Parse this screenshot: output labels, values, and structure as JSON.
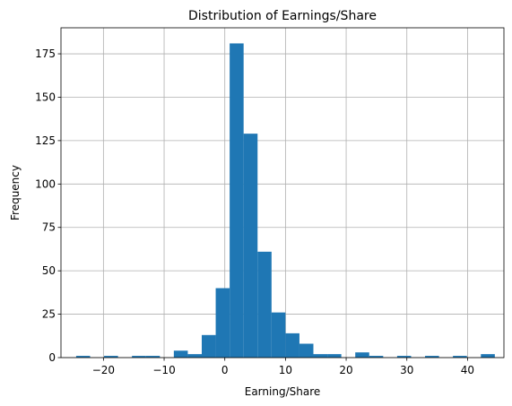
{
  "chart_data": {
    "type": "bar",
    "title": "Distribution of Earnings/Share",
    "xlabel": "Earning/Share",
    "ylabel": "Frequency",
    "xlim": [
      -27,
      46
    ],
    "ylim": [
      0,
      190
    ],
    "xticks": [
      -20,
      -10,
      0,
      10,
      20,
      30,
      40
    ],
    "xtick_labels": [
      "−20",
      "−10",
      "0",
      "10",
      "20",
      "30",
      "40"
    ],
    "yticks": [
      0,
      25,
      50,
      75,
      100,
      125,
      150,
      175
    ],
    "ytick_labels": [
      "0",
      "25",
      "50",
      "75",
      "100",
      "125",
      "150",
      "175"
    ],
    "grid": true,
    "bin_edges": [
      -24.5,
      -22.2,
      -19.9,
      -17.6,
      -15.3,
      -13.0,
      -10.7,
      -8.4,
      -6.1,
      -3.8,
      -1.5,
      0.8,
      3.1,
      5.4,
      7.7,
      10.0,
      12.3,
      14.6,
      16.9,
      19.2,
      21.5,
      23.8,
      26.1,
      28.4,
      30.7,
      33.0,
      35.3,
      37.6,
      39.9,
      42.2,
      44.5
    ],
    "counts": [
      1,
      0,
      1,
      0,
      1,
      1,
      0,
      4,
      2,
      13,
      40,
      181,
      129,
      61,
      26,
      14,
      8,
      2,
      2,
      0,
      3,
      1,
      0,
      1,
      0,
      1,
      0,
      1,
      0,
      2
    ],
    "bar_color": "#1f77b4"
  }
}
